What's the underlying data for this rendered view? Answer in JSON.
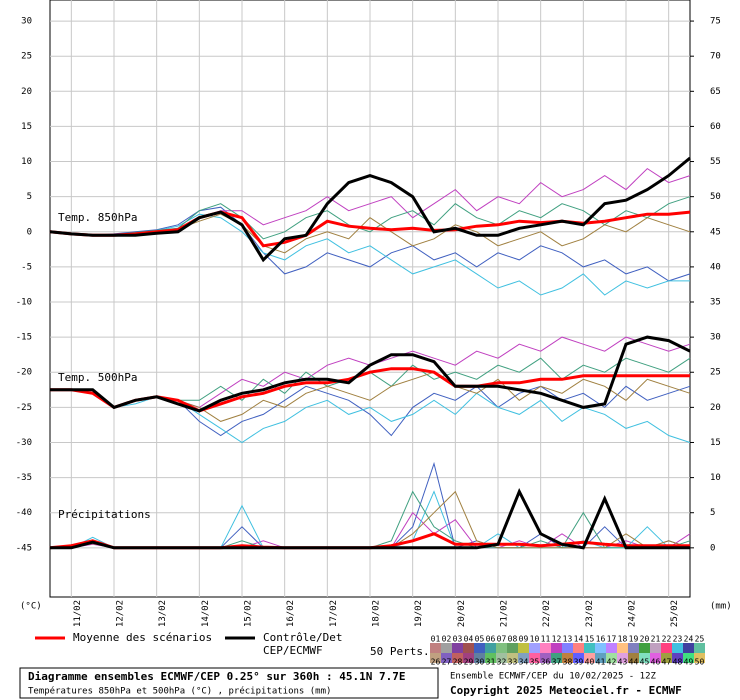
{
  "chart_data": {
    "type": "line",
    "x": [
      0,
      12,
      24,
      36,
      48,
      60,
      72,
      84,
      96,
      108,
      120,
      132,
      144,
      156,
      168,
      180,
      192,
      204,
      216,
      228,
      240,
      252,
      264,
      276,
      288,
      300,
      312,
      324,
      336,
      348,
      360
    ],
    "xlim": [
      0,
      360
    ],
    "xticks": [
      {
        "value": 12,
        "label": "11/02"
      },
      {
        "value": 36,
        "label": "12/02"
      },
      {
        "value": 60,
        "label": "13/02"
      },
      {
        "value": 84,
        "label": "14/02"
      },
      {
        "value": 108,
        "label": "15/02"
      },
      {
        "value": 132,
        "label": "16/02"
      },
      {
        "value": 156,
        "label": "17/02"
      },
      {
        "value": 180,
        "label": "18/02"
      },
      {
        "value": 204,
        "label": "19/02"
      },
      {
        "value": 228,
        "label": "20/02"
      },
      {
        "value": 252,
        "label": "21/02"
      },
      {
        "value": 276,
        "label": "22/02"
      },
      {
        "value": 300,
        "label": "23/02"
      },
      {
        "value": 324,
        "label": "24/02"
      },
      {
        "value": 348,
        "label": "25/02"
      }
    ],
    "ylim": [
      -52,
      33
    ],
    "yticks": [
      30,
      25,
      20,
      15,
      10,
      5,
      0,
      -5,
      -10,
      -15,
      -20,
      -25,
      -30,
      -35,
      -40,
      -45
    ],
    "y2lim": [
      -7,
      78
    ],
    "y2ticks": [
      75,
      70,
      65,
      60,
      55,
      50,
      45,
      40,
      35,
      30,
      25,
      20,
      15,
      10,
      5,
      0
    ],
    "ylabel": "(°C)",
    "y2label": "(mm)",
    "grid": true,
    "annotations": [
      "Temp. 850hPa",
      "Temp. 500hPa",
      "Précipitations"
    ],
    "mean": {
      "name": "Moyenne des scénarios",
      "color": "#ff0000",
      "t850": [
        0,
        -0.3,
        -0.5,
        -0.5,
        -0.3,
        0,
        0.3,
        2,
        2.8,
        2,
        -2,
        -1.5,
        -0.5,
        1.5,
        0.8,
        0.5,
        0.3,
        0.5,
        0.2,
        0.3,
        0.8,
        1,
        1.5,
        1.3,
        1.5,
        1.2,
        1.5,
        2,
        2.5,
        2.5,
        2.8
      ],
      "t500": [
        -22.5,
        -22.5,
        -23,
        -25,
        -24,
        -23.5,
        -24,
        -25.5,
        -24.5,
        -23.5,
        -23,
        -22,
        -21.5,
        -21.5,
        -21,
        -20,
        -19.5,
        -19.5,
        -20,
        -22,
        -22,
        -21.5,
        -21.5,
        -21,
        -21,
        -20.5,
        -20.5,
        -20.5,
        -20.5,
        -20.5,
        -20.5
      ],
      "precip": [
        0,
        0.3,
        1,
        0,
        0,
        0,
        0,
        0,
        0,
        0.3,
        0.1,
        0,
        0,
        0,
        0,
        0,
        0.3,
        1,
        2,
        0.5,
        0.5,
        0.5,
        0.5,
        0.3,
        0.5,
        0.8,
        0.5,
        0.3,
        0.3,
        0.3,
        0.3
      ]
    },
    "control": {
      "name": "Contrôle/Det",
      "name2": "CEP/ECMWF",
      "color": "#000000",
      "t850": [
        0,
        -0.3,
        -0.5,
        -0.5,
        -0.5,
        -0.2,
        0,
        2,
        2.8,
        1,
        -4,
        -1,
        -0.5,
        4,
        7,
        8,
        7,
        5,
        0,
        0.5,
        -0.5,
        -0.5,
        0.5,
        1,
        1.5,
        1,
        4,
        4.5,
        6,
        8,
        10.5
      ],
      "t500": [
        -22.5,
        -22.5,
        -22.5,
        -25,
        -24,
        -23.5,
        -24.5,
        -25.5,
        -24,
        -23,
        -22.5,
        -21.5,
        -21,
        -21,
        -21.5,
        -19,
        -17.5,
        -17.5,
        -18.5,
        -22,
        -22,
        -22,
        -22.5,
        -23,
        -24,
        -25,
        -24.5,
        -16,
        -15,
        -15.5,
        -17
      ],
      "precip": [
        0,
        0,
        0.8,
        0,
        0,
        0,
        0,
        0,
        0,
        0,
        0,
        0,
        0,
        0,
        0,
        0,
        0,
        0,
        0,
        0,
        0,
        0.5,
        8,
        2,
        0.5,
        0,
        7,
        0,
        0,
        0,
        0
      ]
    },
    "members_title": "50 Perts.",
    "members": [
      {
        "label": "01",
        "color": "#c08080"
      },
      {
        "label": "02",
        "color": "#a0a0a0"
      },
      {
        "label": "03",
        "color": "#8040a0"
      },
      {
        "label": "04",
        "color": "#a05050"
      },
      {
        "label": "05",
        "color": "#4060c0",
        "t850": [
          0,
          -0.3,
          -0.5,
          -0.3,
          0,
          0.3,
          1,
          3,
          3.5,
          1,
          -3,
          -6,
          -5,
          -3,
          -4,
          -5,
          -3,
          -2,
          -4,
          -3,
          -5,
          -3,
          -4,
          -2,
          -3,
          -5,
          -4,
          -6,
          -5,
          -7,
          -6
        ],
        "t500": [
          -22.5,
          -22.5,
          -23,
          -25,
          -24,
          -23.5,
          -24,
          -27,
          -29,
          -27,
          -26,
          -24,
          -22,
          -23,
          -24,
          -26,
          -29,
          -25,
          -23,
          -24,
          -22,
          -25,
          -23,
          -22,
          -24,
          -23,
          -25,
          -22,
          -24,
          -23,
          -22
        ],
        "precip": [
          0,
          0.2,
          1,
          0,
          0,
          0,
          0,
          0,
          0,
          3,
          0,
          0,
          0,
          0,
          0,
          0,
          0,
          3,
          12,
          0,
          1,
          0,
          0,
          2,
          0,
          0,
          3,
          0,
          0,
          1,
          0
        ]
      },
      {
        "label": "06",
        "color": "#40a0a0"
      },
      {
        "label": "07",
        "color": "#80c080"
      },
      {
        "label": "08",
        "color": "#60a060"
      },
      {
        "label": "09",
        "color": "#c0c040"
      },
      {
        "label": "10",
        "color": "#a0a0ff"
      },
      {
        "label": "11",
        "color": "#ff80c0"
      },
      {
        "label": "12",
        "color": "#c040c0",
        "t850": [
          0,
          -0.3,
          -0.4,
          -0.5,
          -0.2,
          0,
          0.5,
          2,
          3,
          3,
          1,
          2,
          3,
          5,
          3,
          4,
          5,
          2,
          4,
          6,
          3,
          5,
          4,
          7,
          5,
          6,
          8,
          6,
          9,
          7,
          8
        ],
        "t500": [
          -22.5,
          -22.5,
          -23,
          -25,
          -24,
          -23.5,
          -24,
          -25,
          -23,
          -21,
          -22,
          -20,
          -21,
          -19,
          -18,
          -19,
          -18,
          -17,
          -18,
          -19,
          -17,
          -18,
          -16,
          -17,
          -15,
          -16,
          -17,
          -15,
          -16,
          -17,
          -16
        ],
        "precip": [
          0,
          0,
          0.5,
          0,
          0,
          0,
          0,
          0,
          0,
          0,
          1,
          0,
          0,
          0,
          0,
          0,
          0,
          5,
          2,
          4,
          0,
          0,
          1,
          0,
          2,
          0,
          0,
          1,
          0,
          0,
          2
        ]
      },
      {
        "label": "13",
        "color": "#8080ff"
      },
      {
        "label": "14",
        "color": "#ff8080"
      },
      {
        "label": "15",
        "color": "#40c0c0"
      },
      {
        "label": "16",
        "color": "#80c0ff"
      },
      {
        "label": "17",
        "color": "#c080ff"
      },
      {
        "label": "18",
        "color": "#ffc080"
      },
      {
        "label": "19",
        "color": "#8080c0"
      },
      {
        "label": "20",
        "color": "#40a040"
      },
      {
        "label": "21",
        "color": "#c0a0c0"
      },
      {
        "label": "22",
        "color": "#ff4080"
      },
      {
        "label": "23",
        "color": "#40c0e0",
        "t850": [
          0,
          -0.2,
          -0.5,
          -0.6,
          -0.3,
          0.2,
          0.8,
          2.5,
          2,
          0,
          -3,
          -4,
          -2,
          -1,
          -3,
          -2,
          -4,
          -6,
          -5,
          -4,
          -6,
          -8,
          -7,
          -9,
          -8,
          -6,
          -9,
          -7,
          -8,
          -7,
          -7
        ],
        "t500": [
          -22.5,
          -22.5,
          -23,
          -25,
          -24.5,
          -23.5,
          -24,
          -26,
          -28,
          -30,
          -28,
          -27,
          -25,
          -24,
          -26,
          -25,
          -27,
          -26,
          -24,
          -26,
          -23,
          -25,
          -26,
          -24,
          -27,
          -25,
          -26,
          -28,
          -27,
          -29,
          -30
        ],
        "precip": [
          0,
          0,
          1.5,
          0,
          0,
          0,
          0,
          0,
          0,
          6,
          0,
          0,
          0,
          0,
          0,
          0,
          0,
          1,
          8,
          0,
          0,
          2,
          0,
          0,
          0,
          1,
          0,
          0,
          3,
          0,
          0
        ]
      },
      {
        "label": "24",
        "color": "#4040a0"
      },
      {
        "label": "25",
        "color": "#60c0a0"
      },
      {
        "label": "26",
        "color": "#c0a080"
      },
      {
        "label": "27",
        "color": "#8060c0"
      },
      {
        "label": "28",
        "color": "#c06060"
      },
      {
        "label": "29",
        "color": "#a04080"
      },
      {
        "label": "30",
        "color": "#6080a0"
      },
      {
        "label": "31",
        "color": "#60c060"
      },
      {
        "label": "32",
        "color": "#a0c0a0"
      },
      {
        "label": "33",
        "color": "#c0c080"
      },
      {
        "label": "34",
        "color": "#80a0c0"
      },
      {
        "label": "35",
        "color": "#ff60a0"
      },
      {
        "label": "36",
        "color": "#a060c0"
      },
      {
        "label": "37",
        "color": "#40a080",
        "t850": [
          0,
          -0.3,
          -0.6,
          -0.4,
          -0.1,
          0.2,
          0.5,
          3,
          4,
          2,
          -1,
          0,
          2,
          3,
          1,
          0,
          2,
          3,
          1,
          4,
          2,
          1,
          3,
          2,
          4,
          3,
          1,
          3,
          2,
          4,
          5
        ],
        "t500": [
          -22.5,
          -22.5,
          -23,
          -25,
          -24,
          -23.5,
          -24,
          -24,
          -22,
          -24,
          -21,
          -23,
          -20,
          -22,
          -21,
          -20,
          -22,
          -19,
          -21,
          -20,
          -21,
          -19,
          -20,
          -18,
          -21,
          -19,
          -20,
          -18,
          -19,
          -20,
          -18
        ],
        "precip": [
          0,
          0,
          0.8,
          0,
          0,
          0,
          0,
          0,
          0,
          1,
          0,
          0,
          0,
          0,
          0,
          0,
          1,
          8,
          3,
          1,
          0,
          0,
          0,
          1,
          0,
          5,
          0,
          0,
          0,
          0,
          1
        ]
      },
      {
        "label": "38",
        "color": "#c08040"
      },
      {
        "label": "39",
        "color": "#6060ff"
      },
      {
        "label": "40",
        "color": "#ffa0a0"
      },
      {
        "label": "41",
        "color": "#60a0c0"
      },
      {
        "label": "42",
        "color": "#a0e0a0"
      },
      {
        "label": "43",
        "color": "#e0a0e0"
      },
      {
        "label": "44",
        "color": "#a08040",
        "t850": [
          0,
          -0.4,
          -0.5,
          -0.4,
          -0.2,
          0,
          0.4,
          1.5,
          2.5,
          1,
          -2,
          -3,
          -1,
          0,
          -1,
          2,
          0,
          -2,
          -1,
          1,
          0,
          -2,
          -1,
          0,
          -2,
          -1,
          1,
          0,
          2,
          1,
          0
        ],
        "t500": [
          -22.5,
          -22.5,
          -23,
          -25,
          -24,
          -23.5,
          -24,
          -25,
          -27,
          -26,
          -24,
          -25,
          -23,
          -22,
          -23,
          -24,
          -22,
          -21,
          -20,
          -22,
          -23,
          -21,
          -24,
          -22,
          -23,
          -21,
          -22,
          -24,
          -21,
          -22,
          -23
        ],
        "precip": [
          0,
          0.1,
          0.6,
          0,
          0,
          0,
          0,
          0,
          0,
          0,
          0,
          0,
          0,
          0,
          0,
          0,
          0,
          2,
          5,
          8,
          1,
          0,
          0,
          0,
          0,
          0,
          0,
          2,
          0,
          1,
          0
        ]
      },
      {
        "label": "45",
        "color": "#80e0c0"
      },
      {
        "label": "46",
        "color": "#e060e0"
      },
      {
        "label": "47",
        "color": "#a0a040"
      },
      {
        "label": "48",
        "color": "#6040c0"
      },
      {
        "label": "49",
        "color": "#40e080"
      },
      {
        "label": "50",
        "color": "#e0c060"
      }
    ]
  },
  "footer": {
    "title": "Diagramme ensembles ECMWF/CEP 0.25° sur 360h : 45.1N 7.7E",
    "subtitle": "Températures 850hPa et 500hPa (°C) , précipitations (mm)",
    "run": "Ensemble ECMWF/CEP du 10/02/2025 - 12Z",
    "copyright": "Copyright 2025 Meteociel.fr - ECMWF"
  }
}
